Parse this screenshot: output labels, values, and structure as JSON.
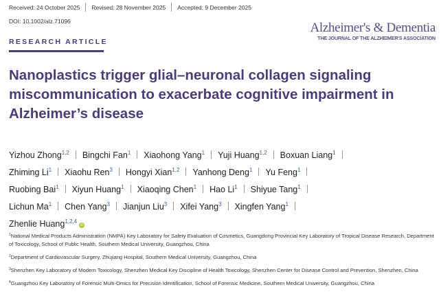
{
  "header": {
    "received": "Received: 24 October 2025",
    "revised": "Revised: 28 November 2025",
    "accepted": "Accepted: 9 December 2025",
    "doi": "DOI: 10.1002/alz.71096",
    "journal_name": "Alzheimer's & Dementia",
    "journal_subtitle": "THE JOURNAL OF THE ALZHEIMER'S ASSOCIATION",
    "article_type": "RESEARCH ARTICLE"
  },
  "colors": {
    "brand": "#4b3b7a",
    "superscript": "#2f5fa8",
    "orcid": "#a6ce39"
  },
  "title_lines": [
    "Nanoplastics trigger glial–neuronal collagen signaling",
    "miscommunication to exacerbate cognitive impairment in",
    "Alzheimer’s disease"
  ],
  "authors": [
    {
      "name": "Yizhou Zhong",
      "aff": "1,2"
    },
    {
      "name": "Bingchi Fan",
      "aff": "1"
    },
    {
      "name": "Xiaohong Yang",
      "aff": "1"
    },
    {
      "name": "Yuji Huang",
      "aff": "1,2"
    },
    {
      "name": "Boxuan Liang",
      "aff": "1"
    },
    {
      "name": "Zhiming Li",
      "aff": "1"
    },
    {
      "name": "Xiaohu Ren",
      "aff": "3"
    },
    {
      "name": "Hongyi Xian",
      "aff": "1,2"
    },
    {
      "name": "Yanhong Deng",
      "aff": "1"
    },
    {
      "name": "Yu Feng",
      "aff": "1"
    },
    {
      "name": "Ruobing Bai",
      "aff": "1"
    },
    {
      "name": "Xiyun Huang",
      "aff": "1"
    },
    {
      "name": "Xiaoqing Chen",
      "aff": "1"
    },
    {
      "name": "Hao Li",
      "aff": "1"
    },
    {
      "name": "Shiyue Tang",
      "aff": "1"
    },
    {
      "name": "Lichun Ma",
      "aff": "1"
    },
    {
      "name": "Chen Yang",
      "aff": "3"
    },
    {
      "name": "Jianjun Liu",
      "aff": "3"
    },
    {
      "name": "Xifei Yang",
      "aff": "3"
    },
    {
      "name": "Xingfen Yang",
      "aff": "1"
    },
    {
      "name": "Zhenlie Huang",
      "aff": "1,2,4",
      "orcid_icon": "orcid-icon"
    }
  ],
  "affiliations": [
    {
      "num": "1",
      "text": "National Medical Products Administration (NMPA) Key Laboratory for Safety Evaluation of Cosmetics, Guangdong Provincial Key Laboratory of Tropical Disease Research, Department of Toxicology, School of Public Health, Southern Medical University, Guangzhou, China"
    },
    {
      "num": "2",
      "text": "Department of Cardiovascular Surgery, Zhujiang Hospital, Southern Medical University, Guangzhou, China"
    },
    {
      "num": "3",
      "text": "Shenzhen Key Laboratory of Modern Toxicology, Shenzhen Medical Key Discipline of Health Toxicology, Shenzhen Center for Disease Control and Prevention, Shenzhen, China"
    },
    {
      "num": "4",
      "text": "Guangzhou Key Laboratory of Forensic Multi-Omics for Precision Identification, School of Forensic Medicine, Southern Medical University, Guangzhou, China"
    }
  ]
}
